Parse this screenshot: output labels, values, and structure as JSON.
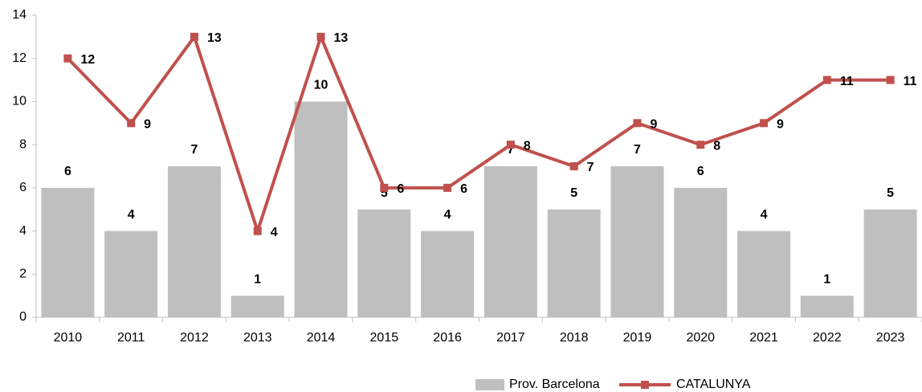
{
  "chart_data": {
    "type": "bar_line",
    "categories": [
      "2010",
      "2011",
      "2012",
      "2013",
      "2014",
      "2015",
      "2016",
      "2017",
      "2018",
      "2019",
      "2020",
      "2021",
      "2022",
      "2023"
    ],
    "series": [
      {
        "name": "Prov. Barcelona",
        "type": "bar",
        "color": "#bfbfbf",
        "values": [
          6,
          4,
          7,
          1,
          10,
          5,
          4,
          7,
          5,
          7,
          6,
          4,
          1,
          5
        ]
      },
      {
        "name": "CATALUNYA",
        "type": "line",
        "color": "#c0504d",
        "label_color": "#c00000",
        "values": [
          12,
          9,
          13,
          4,
          13,
          6,
          6,
          8,
          7,
          9,
          8,
          9,
          11,
          11
        ]
      }
    ],
    "ylim": [
      0,
      14
    ],
    "yticks": [
      0,
      2,
      4,
      6,
      8,
      10,
      12,
      14
    ],
    "grid": false,
    "legend": "bottom"
  }
}
